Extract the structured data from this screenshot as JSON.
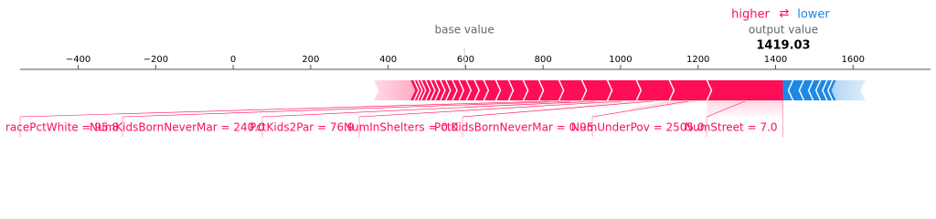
{
  "chart_data": {
    "type": "force",
    "legend_higher": "higher",
    "legend_arrows": "⇄",
    "legend_lower": "lower",
    "base_value_label": "base value",
    "output_value_label": "output value",
    "output_value": 1419.03,
    "output_value_text": "1419.03",
    "base_value": 597,
    "xlim": [
      -550,
      1800
    ],
    "xticks": [
      {
        "value": -400,
        "label": "−400"
      },
      {
        "value": -200,
        "label": "−200"
      },
      0,
      200,
      400,
      600,
      800,
      1000,
      1200,
      1400,
      1600
    ],
    "positive_color": "#ff0d57",
    "negative_color": "#1e88e5",
    "positive": {
      "labels": [
        "NumStreet = 7.0",
        "NumUnderPov = 2505.0",
        "PctKidsBornNeverMar = 0.95",
        "NumInShelters = 0.0",
        "PctKids2Par = 76.9",
        "NumKidsBornNeverMar = 240.0",
        "racePctWhite = 95.8",
        null,
        null,
        null,
        null,
        null,
        null,
        null,
        null,
        null,
        null,
        null,
        null,
        null,
        null,
        null,
        null,
        null
      ],
      "values": [
        196,
        97,
        85,
        75,
        66,
        59,
        52,
        40,
        38,
        33,
        31,
        24,
        21,
        19,
        17,
        17,
        14,
        14,
        12,
        12,
        12,
        9,
        9,
        9
      ]
    },
    "negative": {
      "values": [
        26,
        28,
        24,
        19,
        17,
        14,
        9
      ]
    }
  }
}
